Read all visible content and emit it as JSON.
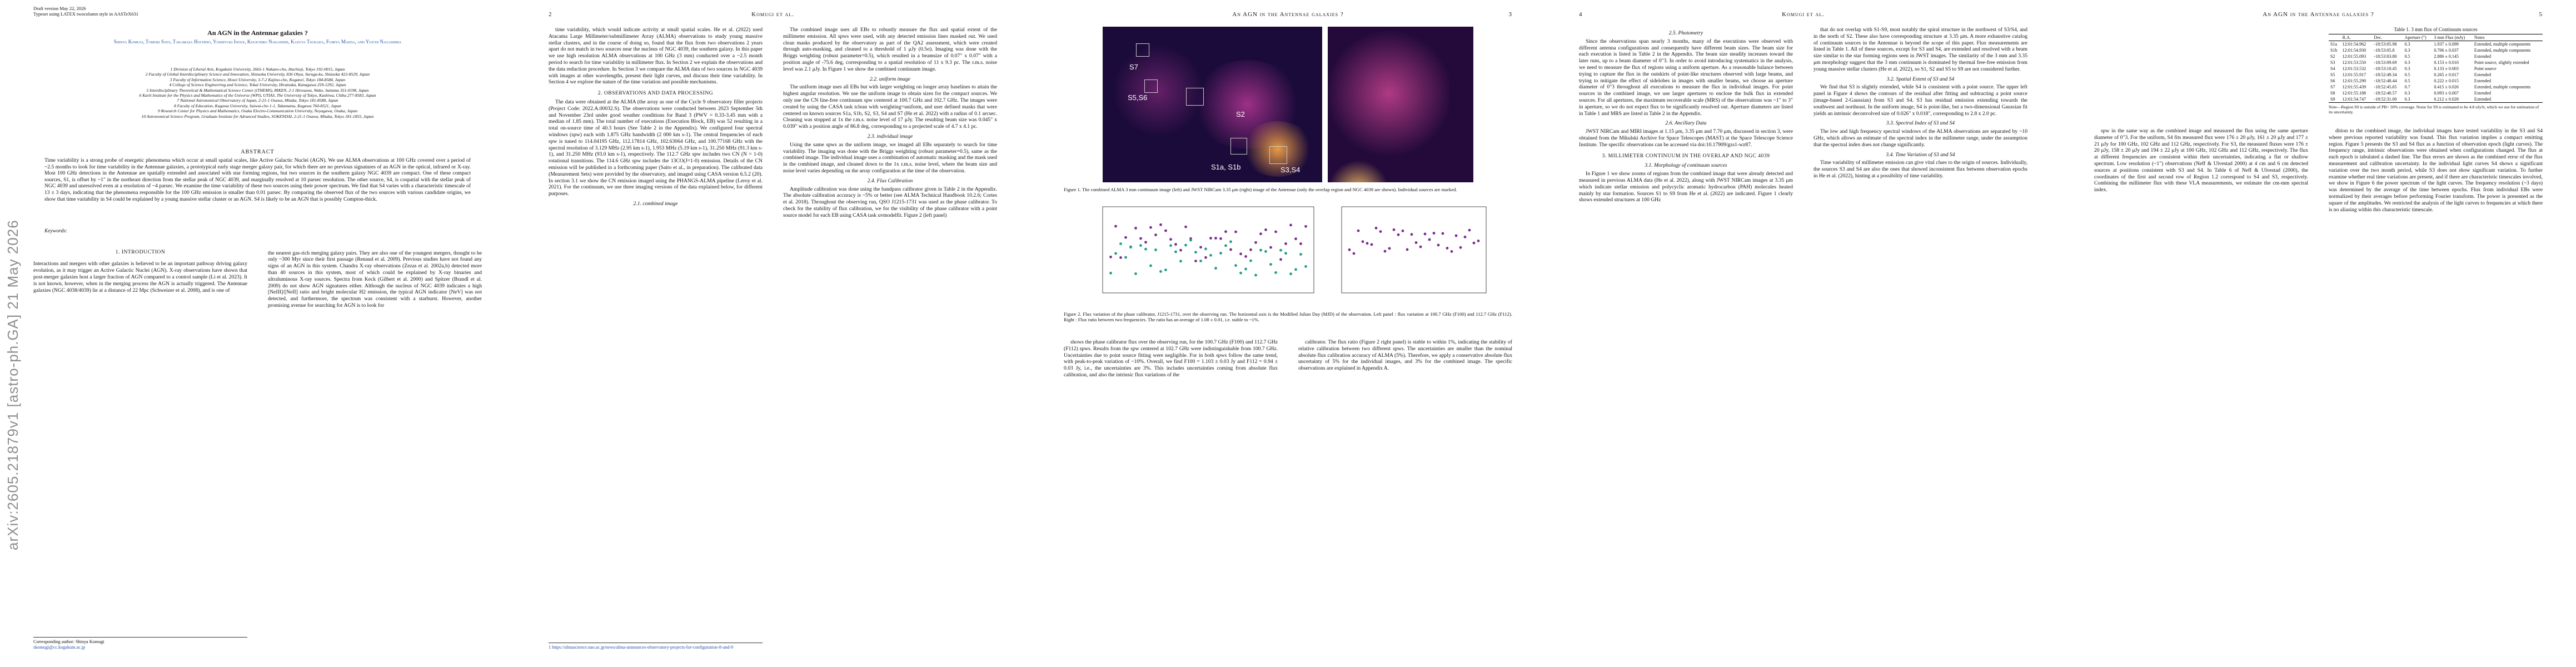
{
  "sidebar": {
    "arxiv": "arXiv:2605.21879v1  [astro-ph.GA]  21 May 2026"
  },
  "page1": {
    "draft_line1": "Draft version May 22, 2026",
    "draft_line2": "Typeset using LATEX twocolumn style in AASTeX631",
    "title": "An AGN in the Antennae galaxies ?",
    "authors": "Shinya Komugi, Tomoki Sato, Takamasa Hochino, Yoshiyuki Inoue, Kouichiro Nakanishi, Kazuya Tsukada, Fumiya Maeda, and Yuichi Nagashima",
    "affiliations": [
      "1 Division of Liberal Arts, Kogakuin University, 2665-1 Nakano-cho, Hachioji, Tokyo 192-0015, Japan",
      "2 Faculty of Global Interdisciplinary Science and Innovation, Shizuoka University, 836 Ohya, Suruga-ku, Shizuoka 422-8529, Japan",
      "3 Faculty of Information Science, Hosei University, 3-7-2 Kajino-cho, Koganei, Tokyo 184-8584, Japan",
      "4 College of Science Engineering and Science, Tokai University, Hiratsuka, Kanagawa 259-1292, Japan",
      "5 Interdisciplinary Theoretical & Mathematical Science Center (iTHEMS), RIKEN, 2-1 Hirosawa, Wako, Saitama 351-0198, Japan",
      "6 Kavli Institute for the Physics and Mathematics of the Universe (WPI), UTIAS, The University of Tokyo, Kashiwa, Chiba 277-8583, Japan",
      "7 National Astronomical Observatory of Japan, 2-21-1 Osawa, Mitaka, Tokyo 181-8588, Japan",
      "8 Faculty of Education, Kagawa University, Saiwai-cho 1-1, Takamatsu, Kagawa 760-8521, Japan",
      "9 Research Center for Physics and Mathematics, Osaka Electro-Communication University, Neyagawa, Osaka, Japan",
      "10 Astronomical Science Program, Graduate Institute for Advanced Studies, SOKENDAI, 2-21-1 Osawa, Mitaka, Tokyo 181-1855, Japan"
    ],
    "abstract_heading": "ABSTRACT",
    "abstract": "Time variability is a strong probe of energetic phenomena which occur at small spatial scales, like Active Galactic Nuclei (AGN). We use ALMA observations at 100 GHz covered over a period of ~2.5 months to look for time variability in the Antennae galaxies, a prototypical early stage merger galaxy pair, for which there are no previous signatures of an AGN in the optical, infrared or X-ray. Most 100 GHz detections in the Antennae are spatially extended and associated with star forming regions, but two sources in the southern galaxy NGC 4039 are compact. One of these compact sources, S1, is offset by ~1\" in the northeast direction from the stellar peak of NGC 4039, and marginally resolved at 10 parsec resolution. The other source, S4, is cospatial with the stellar peak of NGC 4039 and unresolved even at a resolution of ~4 parsec. We examine the time variability of these two sources using their power spectrum. We find that S4 varies with a characteristic timescale of 13 ± 3 days, indicating that the phenomena responsible for the 100 GHz emission is smaller than 0.01 parsec. By comparing the observed flux of the two sources with various candidate origins, we show that time variability in S4 could be explained by a young massive stellar cluster or an AGN. S4 is likely to be an AGN that is possibly Compton-thick.",
    "keywords": "Keywords: ",
    "intro_heading": "1. INTRODUCTION",
    "intro_left": "Interactions and mergers with other galaxies is believed to be an important pathway driving galaxy evolution, as it may trigger an Active Galactic Nuclei (AGN). X-ray observations have shown that post-merger galaxies host a larger fraction of AGN compared to a control sample (Li et al. 2023). It is not known, however, when in the merging process the AGN is actually triggered. The Antennae galaxies (NGC 4038/4039) lie at a distance of 22 Mpc (Schweizer et al. 2008), and is one of",
    "intro_right": "the nearest gas-rich merging galaxy pairs. They are also one of the youngest mergers, thought to be only ~300 Myr since their first passage (Renaud et al. 2009). Previous studies have not found any signs of an AGN in this system. Chandra X-ray observations (Zezas et al. 2002a,b) detected more than 40 sources in this system, most of which could be explained by X-ray binaries and ultraluminous X-ray sources. Spectra from Keck (Gilbert et al. 2000) and Spitzer (Brandl et al. 2009) do not show AGN signatures either. Although the nucleus of NGC 4039 indicates a high [NeIII]/[NeII] ratio and bright molecular H2 emission, the typical AGN indicator [NeV] was not detected, and furthermore, the spectrum was consistent with a starburst. However, another promising avenue for searching for AGN is to look for",
    "corresponding": "Corresponding author: Shinya Komugi",
    "email": "skomugi@cc.kogakuin.ac.jp"
  },
  "page2": {
    "num": "2",
    "head": "Komugi et al.",
    "left": "time variability, which would indicate activity at small spatial scales. He et al. (2022) used Atacama Large Millimeter/submillimeter Array (ALMA) observations to study young massive stellar clusters, and in the course of doing so, found that the flux from two observations 2 years apart do not match in two sources near the nucleus of NGC 4039, the southern galaxy. In this paper we use high resolution ALMA observations at 100 GHz (3 mm) conducted over a ~2.5 month period to search for time variability in millimeter flux. In Section 2 we explain the observations and the data reduction procedure. In Section 3 we compare the ALMA data of two sources in NGC 4039 with images at other wavelengths, present their light curves, and discuss their time variability. In Section 4 we explore the nature of the time variation and possible mechanisms.",
    "obs_heading": "2. OBSERVATIONS AND DATA PROCESSING",
    "obs_text": "The data were obtained at the ALMA (the array as one of the Cycle 9 observatory filler projects (Project Code: 2022.A.00032.S). The observations were conducted between 2023 September 5th and November 23rd under good weather conditions for Band 3 (PWV = 0.33-3.45 mm with a median of 1.85 mm). The total number of executions (Execution Block, EB) was 52 resulting in a total on-source time of 40.3 hours (See Table 2 in the Appendix). We configured four spectral windows (spw) each with 1.875 GHz bandwidth (2 000 km s-1). The central frequencies of each spw is tuned to 114.04195 GHz, 112.17814 GHz, 102.63064 GHz, and 100.77168 GHz with the spectral resolution of 3.129 MHz (2.95 km s-1), 1.953 MHz (5.19 km s-1), 31.250 MHz (91.3 km s-1), and 31.250 MHz (93.0 km s-1), respectively. The 112.7 GHz spw includes two CN (N = 1-0) rotational transitions. The 114.6 GHz spw includes the 13CO(J=1-0) emission. Details of the CN emission will be published in a forthcoming paper (Saito et al., in preparation). The calibrated data (Measurement Sets) were provided by the observatory, and imaged using CASA version 6.5.2 (20). In section 3.1 we show the CN emission imaged using the PHANGS-ALMA pipeline (Leroy et al. 2021). For the continuum, we use three imaging versions of the data explained below, for different purposes.",
    "combined_heading": "2.1. combined image",
    "right": "The combined image uses all EBs to robustly measure the flux and spatial extent of the millimeter emission. All spws were used, with any detected emission lines masked out. We used clean masks produced by the observatory as part of the QA2 assessment, which were created through auto-masking, and cleaned to a threshold of 1 μJy (0.5σ). Imaging was done with the Briggs weighting (robust parameter=0.5), which resulted in a beamsize of 0.07\" x 0.07\" with a position angle of -75.6 deg, corresponding to a spatial resolution of 11 x 9.3 pc. The r.m.s. noise level was 2.1 μJy. In Figure 1 we show the combined continuum image.",
    "uniform_heading": "2.2. uniform image",
    "uniform_text": "The uniform image uses all EBs but with larger weighting on longer array baselines to attain the highest angular resolution. We use the uniform image to obtain sizes for the compact sources. We only use the CN line-free continuum spw centered at 100.7 GHz and 102.7 GHz. The images were created by using the CASA task tclean with weighting=uniform, and user defined masks that were centered on known sources S1a, S1b, S2, S3, S4 and S7 (He et al. 2022) with a radius of 0.1 arcsec. Cleaning was stopped at 1x the r.m.s. noise level of 17 μJy. The resulting beam size was 0.045\" x 0.039\" with a position angle of 86.8 deg, corresponding to a projected scale of 4.7 x 4.1 pc.",
    "individual_heading": "2.3. individual image",
    "individual_text": "Using the same spws as the uniform image, we imaged all EBs separately to search for time variability. The imaging was done with the Briggs weighting (robust parameter=0.5), same as the combined image. The individual image uses a combination of automatic masking and the mask used in the combined image, and cleaned down to the 1x r.m.s. noise level, where the beam size and noise level varies depending on the array configuration at the time of the observation.",
    "fluxcal_heading": "2.4. Flux Calibration",
    "fluxcal_text": "Amplitude calibration was done using the bandpass calibrator given in Table 2 in the Appendix. The absolute calibration accuracy is ~5% or better (see ALMA Technical Handbook 10.2.6; Cortes et al. 2018). Throughout the observing run, QSO J1215-1731 was used as the phase calibrator. To check for the stability of flux calibration, we for the visibility of the phase calibrator with a point source model for each EB using CASA task uvmodelfit. Figure 2 (left panel)",
    "footnote": "1 https://almascience.nao.ac.jp/news/alma-announces-observatory-projects-for-configuration-8-and-9"
  },
  "page3": {
    "num": "3",
    "head": "An AGN in the Antennae galaxies ?",
    "labels": [
      "S7",
      "S5,S6",
      "S2",
      "S1a, S1b",
      "S3,S4"
    ],
    "fig1_caption": "Figure 1. The combined ALMA 3 mm continuum image (left) and JWST NIRCam 3.35 μm (right) image of the Antennae (only the overlap region and NGC 4039 are shown). Individual sources are marked.",
    "fig2_caption": "Figure 2. Flux variation of the phase calibrator, J1215-1731, over the observing run. The horizontal axis is the Modified Julian Day (MJD) of the observation. Left panel : flux variation at 100.7 GHz (F100) and 112.7 GHz (F112). Right : Flux ratio between two frequencies. The ratio has an average of 1.08 ± 0.01, i.e. stable to ~1%.",
    "left": "shows the phase calibrator flux over the observing run, for the 100.7 GHz (F100) and 112.7 GHz (F112) spws. Results from the spw centered at 102.7 GHz were indistinguishable from 100.7 GHz. Uncertainties due to point source fitting were negligible. For in both spws follow the same trend, with peak-to-peak variation of ~10%. Overall, we find F100 = 1.103 ± 0.03 Jy and F112 = 0.94 ± 0.03 Jy, i.e., the uncertainties are 3%. This includes uncertainties coming from absolute flux calibration, and also the intrinsic flux variations of the",
    "right": "calibrator. The flux ratio (Figure 2 right panel) is stable to within 1%, indicating the stability of relative calibration between two different spws. The uncertainties are smaller than the nominal absolute flux calibration accuracy of ALMA (5%). Therefore, we apply a conservative absolute flux uncertainty of 5% for the individual images, and 3% for the combined image. The specific observations are explained in Appendix A."
  },
  "page4": {
    "num": "4",
    "head": "Komugi et al.",
    "phot_heading": "2.5. Photometry",
    "phot_text": "Since the observations span nearly 3 months, many of the executions were observed with different antenna configurations and consequently have different beam sizes. The beam size for each execution is listed in Table 2 in the Appendix. The beam size steadily increases toward the later runs, up to a beam diameter of 0\"3. In order to avoid introducing systematics in the analysis, we need to measure the flux of regions using a uniform aperture. As a reasonable balance between trying to capture the flux in the outskirts of point-like structures observed with large beams, and trying to mitigate the effect of sidelobes in images with smaller beams, we choose an aperture diameter of 0\"3 throughout all executions to measure the flux in individual images. For point sources in the combined image, we use larger apertures to enclose the bulk flux in extended sources. For all apertures, the maximum recoverable scale (MRS) of the observations was ~1\" to 3\" in aperture, so we do not expect flux to be significantly resolved out. Aperture diameters are listed in Table 1 and MRS are listed in Table 2 in the Appendix.",
    "anc_heading": "2.6. Ancillary Data",
    "anc_text": "JWST NIRCam and MIRI images at 1.15 μm, 3.35 μm and 7.70 μm, discussed in section 3, were obtained from the Mikulski Archive for Space Telescopes (MAST) at the Space Telescope Science Institute. The specific observations can be accessed via doi:10.17909/gzs1-wz87.",
    "mm_heading": "3. MILLIMETER CONTINUUM IN THE OVERLAP AND NGC 4039",
    "morph_heading": "3.1. Morphology of continuum sources",
    "morph_text": "In Figure 1 we show zooms of regions from the combined image that were already detected and measured in previous ALMA data (He et al. 2022), along with JWST NIRCam images at 3.35 μm which indicate stellar emission and polycyclic aromatic hydrocarbon (PAH) molecules heated mainly by star formation. Sources S1 to S9 from He et al. (2022) are indicated. Figure 1 clearly shows extended structures at 100 GHz",
    "right_top": "that do not overlap with S1-S9, most notably the spiral structure in the northwest of S3/S4, and in the north of S2. These also have corresponding structure at 3.35 μm. A more exhaustive catalog of continuum sources in the Antennae is beyond the scope of this paper. Flux measurements are listed in Table 1. All of these sources, except for S3 and S4, are extended and resolved with a beam size similar to the star forming regions seen in JWST images. The similarity of the 3 mm and 3.35 μm morphology suggest that the 3 mm continuum is dominated by thermal free-free emission from young massive stellar clusters (He et al. 2022), so S1, S2 and S5 to S9 are not considered further.",
    "spatial_heading": "3.2. Spatial Extent of S3 and S4",
    "spatial_text": "We find that S3 is slightly extended, while S4 is consistent with a point source. The upper left panel in Figure 4 shows the contours of the residual after fitting and subtracting a point source (image-based 2-Gaussian) from S3 and S4. S3 has residual emission extending towards the southwest and northeast. In the uniform image, S4 is point-like, but a two-dimensional Gaussian fit yields an intrinsic deconvolved size of 0.026\" x 0.018\", corresponding to 2.8 x 2.0 pc.",
    "specidx_heading": "3.3. Spectral Index of S3 and S4",
    "specidx_text": "The low and high frequency spectral windows of the ALMA observations are separated by ~10 GHz, which allows an estimate of the spectral index in the millimeter range, under the assumption that the spectral index does not change significantly.",
    "timevar_heading": "3.4. Time Variation of S3 and S4",
    "timevar_text": "Time variability of millimeter emission can give vital clues to the origin of sources. Individually, the sources S3 and S4 are also the ones that showed inconsistent flux between observation epochs in He et al. (2022), hinting at a possibility of time variability."
  },
  "page5": {
    "head": "An AGN in the Antennae galaxies ?",
    "num": "5",
    "table_title": "Table 1. 3 mm flux of Continuum sources",
    "table_headers": [
      "",
      "R.A.",
      "Dec.",
      "Aperture (\")",
      "3 mm Flux (mJy)",
      "Notes"
    ],
    "table_rows": [
      [
        "S1a",
        "12:01:54.962",
        "-18:53:05.98",
        "0.3",
        "1.937 ± 0.099",
        "Extended, multiple components"
      ],
      [
        "S1b",
        "12:01:54.930",
        "-18:53:05.8",
        "0.3",
        "0.706 ± 0.037",
        "Extended, multiple components"
      ],
      [
        "S2",
        "12:01:55.093",
        "-18:53:03.80",
        "0.5",
        "2.886 ± 0.145",
        "Extended"
      ],
      [
        "S3",
        "12:01:53.550",
        "-18:53:09.69",
        "0.3",
        "0.153 ± 0.010",
        "Point source, slightly extended"
      ],
      [
        "S4",
        "12:01:53.532",
        "-18:53:10.45",
        "0.3",
        "0.133 ± 0.003",
        "Point source"
      ],
      [
        "S5",
        "12:01:55.917",
        "-18:52:49.34",
        "0.5",
        "0.265 ± 0.017",
        "Extended"
      ],
      [
        "S6",
        "12:01:55.290",
        "-18:52:48.44",
        "0.5",
        "0.222 ± 0.015",
        "Extended"
      ],
      [
        "S7",
        "12:01:55.439",
        "-18:52:45.65",
        "0.7",
        "0.415 ± 0.026",
        "Extended, multiple components"
      ],
      [
        "S8",
        "12:01:55.188",
        "-18:52:40.57",
        "0.3",
        "0.093 ± 0.007",
        "Extended"
      ],
      [
        "S9",
        "12:01:54.747",
        "-18:52:31.00",
        "0.3",
        "0.212 ± 0.028",
        "Extended"
      ]
    ],
    "table_note": "Note—Region S9 is outside of PB> 50% coverage. Noise for S9 is estimated to be 4.8 uJy/b, which we use for estimation of its uncertainty.",
    "left": "spw in the same way as the combined image and measured the flux using the same aperture diameter of 0\"3. For the uniform, S4 fits measured flux were 176 ± 20 μJy, 161 ± 20 μJy and 177 ± 21 μJy for 100 GHz, 102 GHz and 112 GHz, respectively. For S3, the measured fluxes were 176 ± 20 μJy, 158 ± 20 μJy and 194 ± 22 μJy at 100 GHz, 102 GHz and 112 GHz, respectively. The flux at different frequencies are consistent within their uncertainties, indicating a flat or shallow spectrum. Low resolution (~1\") observations (Neff & Ulvestad 2000) at 4 cm and 6 cm detected sources at positions consistent with S3 and S4. In Table 6 of Neff & Ulvestad (2000), the coordinates of the first and second row of Region 1.2 correspond to S4 and S3, respectively. Combining the millimeter flux with these VLA measurements, we estimate the cm-mm spectral index.",
    "right": "dition to the combined image, the individual images have tested variability in the S3 and S4 where previous reported variability was found. This flux variation implies a compact emitting region. Figure 5 presents the S3 and S4 flux as a function of observation epoch (light curves). The frequency range, intrinsic observations were obtained when configurations changed. The flux at each epoch is tabulated a dashed line. The flux errors are shown as the combined error of the flux measurement and calibration uncertainty. In the individual light curves S4 shows a significant variation over the two month period, while S3 does not show significant variation. To further examine whether real time variations are present, and if there are characteristic timescales involved, we show in Figure 6 the power spectrum of the light curves. The frequency resolution (~3 days) was determined by the average of the time between epochs. Flux from individual EBs were normalized by their averages before performing Fourier transform. The power is presented as the square of the amplitudes. We restricted the analysis of the light curves to frequencies at which there is no aliasing within this characteristic timescale."
  }
}
